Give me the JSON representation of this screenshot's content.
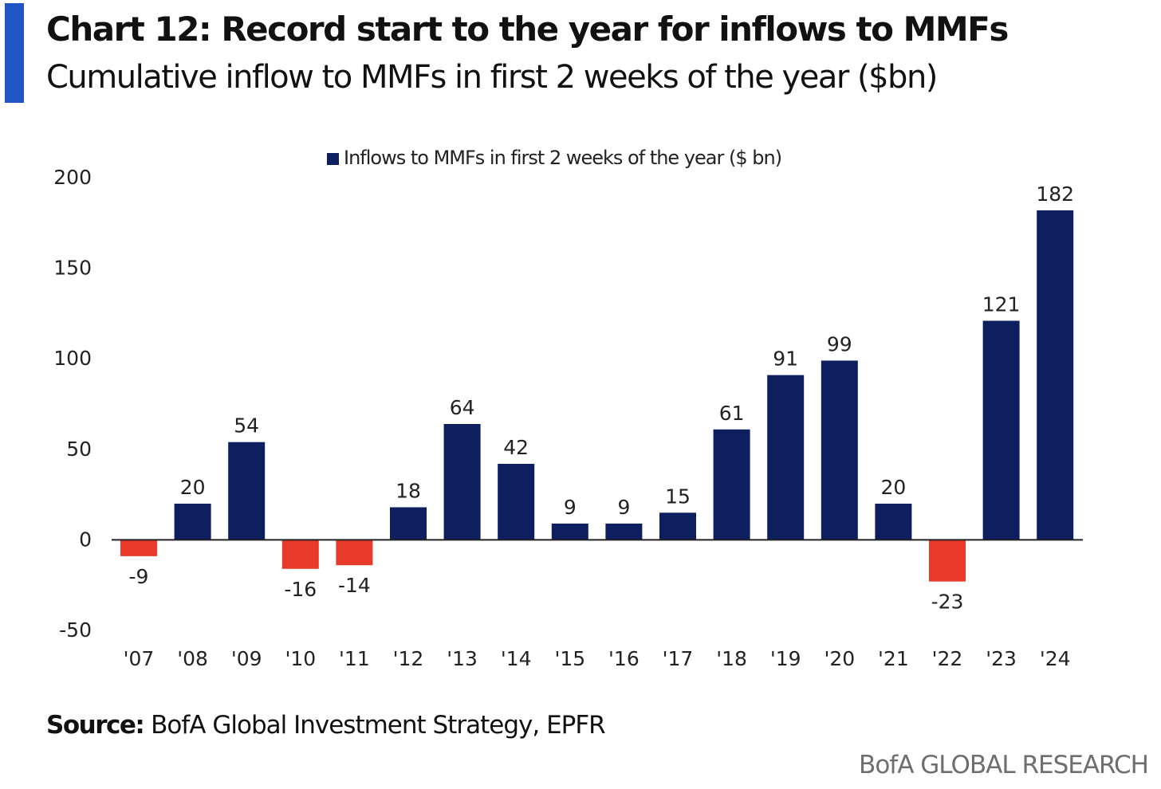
{
  "header": {
    "title": "Chart 12: Record start to the year for inflows to MMFs",
    "subtitle": "Cumulative inflow to MMFs in first 2 weeks of the year ($bn)"
  },
  "footer": {
    "source_label": "Source:",
    "source_text": "BofA Global Investment Strategy, EPFR",
    "brand": "BofA GLOBAL RESEARCH"
  },
  "colors": {
    "accent": "#2255c4",
    "positive": "#0d1f5e",
    "negative": "#e8392a",
    "axis": "#222222"
  },
  "chart_data": {
    "type": "bar",
    "categories": [
      "'07",
      "'08",
      "'09",
      "'10",
      "'11",
      "'12",
      "'13",
      "'14",
      "'15",
      "'16",
      "'17",
      "'18",
      "'19",
      "'20",
      "'21",
      "'22",
      "'23",
      "'24"
    ],
    "series": [
      {
        "name": "Inflows to MMFs in first 2 weeks of the year ($ bn)",
        "values": [
          -9,
          20,
          54,
          -16,
          -14,
          18,
          64,
          42,
          9,
          9,
          15,
          61,
          91,
          99,
          20,
          -23,
          121,
          182
        ]
      }
    ],
    "data_labels": [
      "-9",
      "20",
      "54",
      "-16",
      "-14",
      "18",
      "64",
      "42",
      "9",
      "9",
      "15",
      "61",
      "91",
      "99",
      "20",
      "-23",
      "121",
      "182"
    ],
    "yticks": [
      200,
      150,
      100,
      50,
      0,
      -50
    ],
    "ytick_labels": [
      "200",
      "150",
      "100",
      "50",
      "0",
      "-50"
    ],
    "ylim": [
      -50,
      200
    ],
    "legend_position": "top-center",
    "grid": false
  }
}
